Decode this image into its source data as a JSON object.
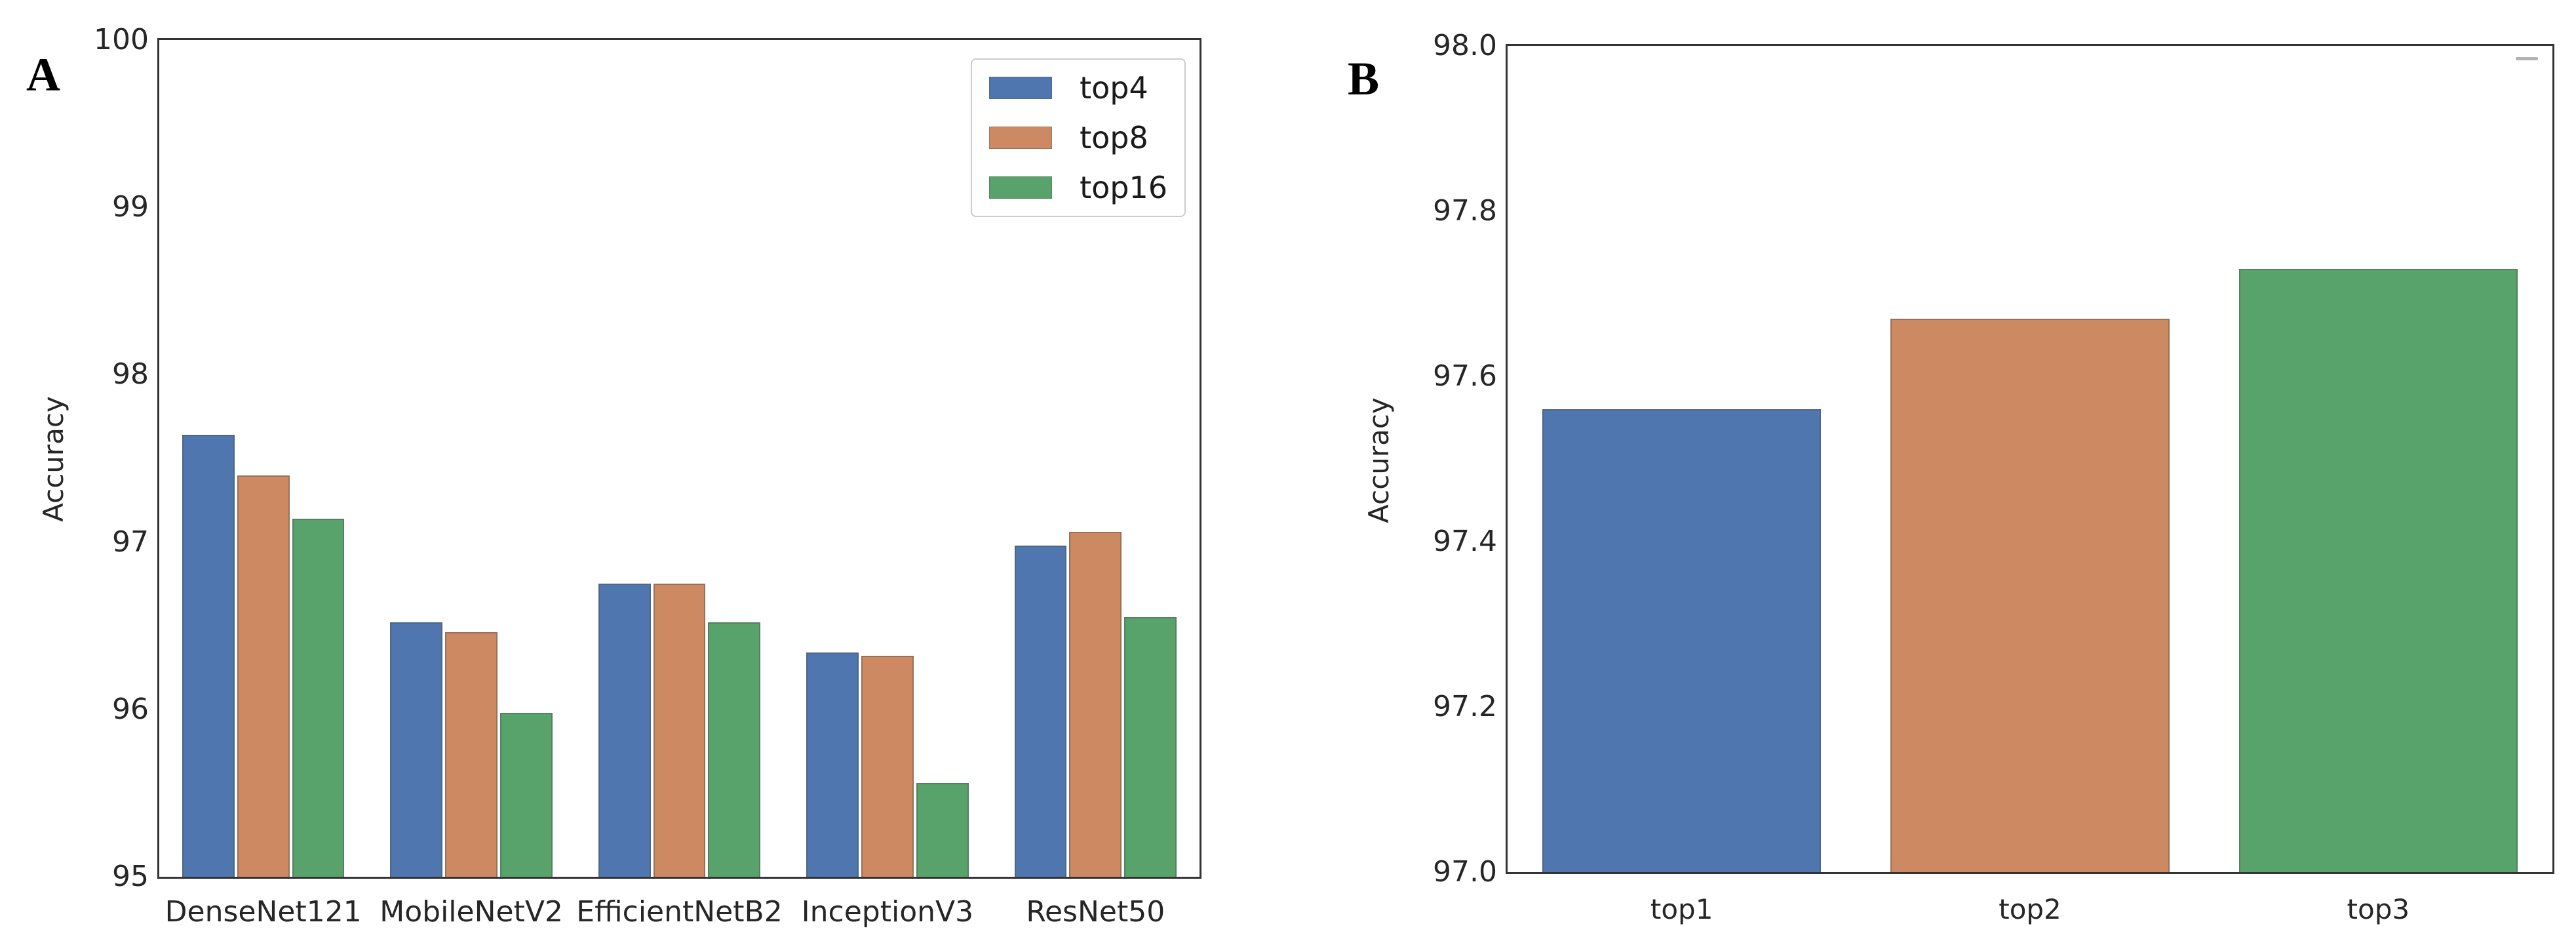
{
  "chart_data": [
    {
      "type": "bar",
      "panel_label": "A",
      "title": "",
      "xlabel": "",
      "ylabel": "Accuracy",
      "categories": [
        "DenseNet121",
        "MobileNetV2",
        "EfficientNetB2",
        "InceptionV3",
        "ResNet50"
      ],
      "series": [
        {
          "name": "top4",
          "color": "#4f76ae",
          "values": [
            97.64,
            96.52,
            96.75,
            96.34,
            96.98
          ]
        },
        {
          "name": "top8",
          "color": "#cd8a62",
          "values": [
            97.4,
            96.46,
            96.75,
            96.32,
            97.06
          ]
        },
        {
          "name": "top16",
          "color": "#58a36c",
          "values": [
            97.14,
            95.98,
            96.52,
            95.56,
            96.55
          ]
        }
      ],
      "ylim": [
        95,
        100
      ],
      "yticks": [
        {
          "value": 95,
          "label": "95"
        },
        {
          "value": 96,
          "label": "96"
        },
        {
          "value": 97,
          "label": "97"
        },
        {
          "value": 98,
          "label": "98"
        },
        {
          "value": 99,
          "label": "99"
        },
        {
          "value": 100,
          "label": "100"
        }
      ],
      "legend": {
        "position": "upper right",
        "entries": [
          "top4",
          "top8",
          "top16"
        ]
      },
      "grid": false
    },
    {
      "type": "bar",
      "panel_label": "B",
      "title": "",
      "xlabel": "",
      "ylabel": "Accuracy",
      "categories": [
        "top1",
        "top2",
        "top3"
      ],
      "values": [
        97.56,
        97.67,
        97.73
      ],
      "bar_colors": [
        "#4f76ae",
        "#cd8a62",
        "#58a36c"
      ],
      "ylim": [
        97.0,
        98.0
      ],
      "yticks": [
        {
          "value": 97.0,
          "label": "97.0"
        },
        {
          "value": 97.2,
          "label": "97.2"
        },
        {
          "value": 97.4,
          "label": "97.4"
        },
        {
          "value": 97.6,
          "label": "97.6"
        },
        {
          "value": 97.8,
          "label": "97.8"
        },
        {
          "value": 98.0,
          "label": "98.0"
        }
      ],
      "grid": false
    }
  ]
}
